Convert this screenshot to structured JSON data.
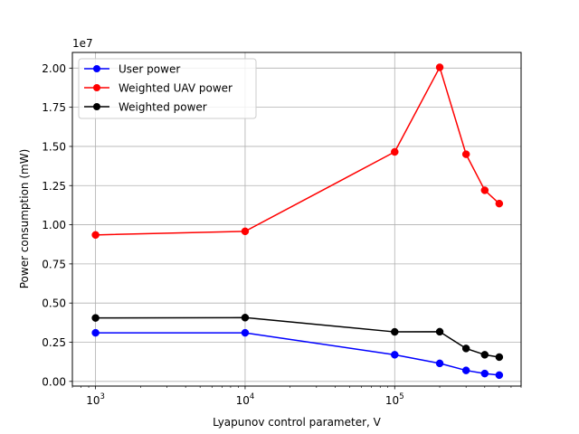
{
  "chart_data": {
    "type": "line",
    "xlabel": "Lyapunov control parameter, V",
    "ylabel": "Power consumption (mW)",
    "x_scale": "log",
    "xlim": [
      700,
      700000
    ],
    "ylim": [
      -0.03,
      2.1
    ],
    "y_multiplier_label": "1e7",
    "grid": true,
    "legend_position": "upper-left",
    "x_ticks": [
      {
        "value": 1000,
        "base": "10",
        "exp": "3"
      },
      {
        "value": 10000,
        "base": "10",
        "exp": "4"
      },
      {
        "value": 100000,
        "base": "10",
        "exp": "5"
      }
    ],
    "y_ticks": [
      {
        "value": 0.0,
        "label": "0.00"
      },
      {
        "value": 0.25,
        "label": "0.25"
      },
      {
        "value": 0.5,
        "label": "0.50"
      },
      {
        "value": 0.75,
        "label": "0.75"
      },
      {
        "value": 1.0,
        "label": "1.00"
      },
      {
        "value": 1.25,
        "label": "1.25"
      },
      {
        "value": 1.5,
        "label": "1.50"
      },
      {
        "value": 1.75,
        "label": "1.75"
      },
      {
        "value": 2.0,
        "label": "2.00"
      }
    ],
    "x": [
      1000,
      10000,
      100000,
      200000,
      300000,
      400000,
      500000
    ],
    "series": [
      {
        "name": "User power",
        "color": "#0000ff",
        "values": [
          0.31,
          0.31,
          0.17,
          0.115,
          0.07,
          0.05,
          0.04
        ]
      },
      {
        "name": "Weighted UAV power",
        "color": "#ff0000",
        "values": [
          0.935,
          0.958,
          1.465,
          2.005,
          1.45,
          1.22,
          1.135
        ]
      },
      {
        "name": "Weighted power",
        "color": "#000000",
        "values": [
          0.405,
          0.407,
          0.316,
          0.317,
          0.21,
          0.17,
          0.155
        ]
      }
    ]
  }
}
